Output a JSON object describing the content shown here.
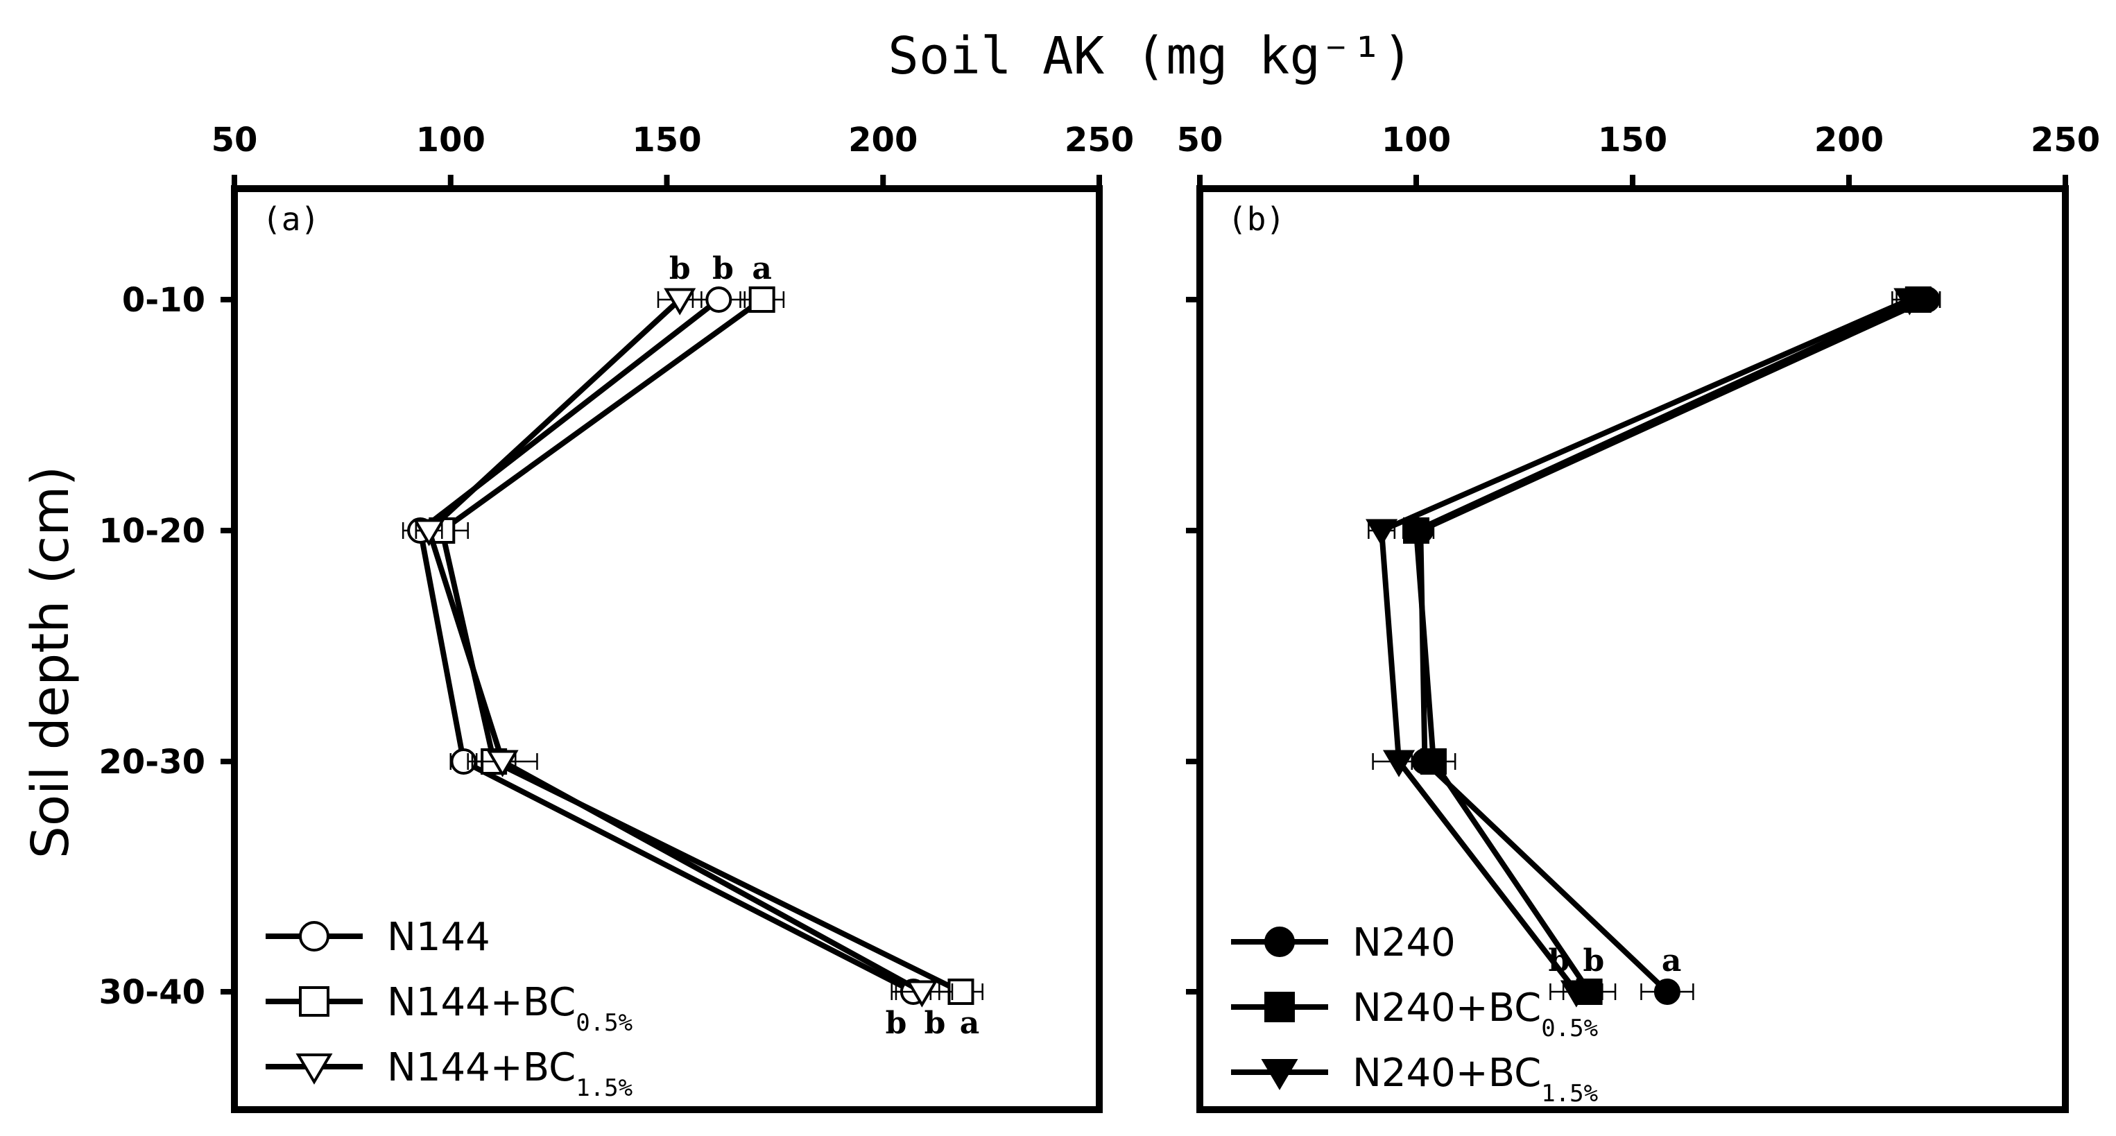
{
  "chart_data": {
    "title": "Soil AK (mg kg⁻¹)",
    "ylabel": "Soil depth (cm)",
    "depth_labels": [
      "0-10",
      "10-20",
      "20-30",
      "30-40"
    ],
    "xlim": [
      50,
      250
    ],
    "xticks": [
      50,
      100,
      150,
      200,
      250
    ],
    "panels": [
      {
        "label": "(a)",
        "type": "line",
        "series": [
          {
            "name": "N144",
            "marker": "circle",
            "fill": "open",
            "values": [
              162,
              93,
              103,
              207
            ],
            "errors": [
              6,
              4,
              3,
              4
            ]
          },
          {
            "name": "N144+BC",
            "subscript": "0.5%",
            "marker": "square",
            "fill": "open",
            "values": [
              172,
              98,
              110,
              218
            ],
            "errors": [
              5,
              6,
              5,
              5
            ]
          },
          {
            "name": "N144+BC",
            "subscript": "1.5%",
            "marker": "triangle",
            "fill": "open",
            "values": [
              153,
              95,
              112,
              209
            ],
            "errors": [
              5,
              3,
              8,
              7
            ]
          }
        ],
        "annotations": [
          {
            "text": "b",
            "x": 153,
            "depth": 0,
            "pos": "above"
          },
          {
            "text": "b",
            "x": 163,
            "depth": 0,
            "pos": "above"
          },
          {
            "text": "a",
            "x": 172,
            "depth": 0,
            "pos": "above"
          },
          {
            "text": "b",
            "x": 203,
            "depth": 3,
            "pos": "below"
          },
          {
            "text": "b",
            "x": 212,
            "depth": 3,
            "pos": "below"
          },
          {
            "text": "a",
            "x": 220,
            "depth": 3,
            "pos": "below"
          }
        ]
      },
      {
        "label": "(b)",
        "type": "line",
        "series": [
          {
            "name": "N240",
            "marker": "circle",
            "fill": "filled",
            "values": [
              218,
              101,
              102,
              158
            ],
            "errors": [
              3,
              3,
              3,
              6
            ]
          },
          {
            "name": "N240+BC",
            "subscript": "0.5%",
            "marker": "square",
            "fill": "filled",
            "values": [
              216,
              100,
              104,
              140
            ],
            "errors": [
              5,
              3,
              5,
              6
            ]
          },
          {
            "name": "N240+BC",
            "subscript": "1.5%",
            "marker": "triangle",
            "fill": "filled",
            "values": [
              214,
              92,
              96,
              137
            ],
            "errors": [
              4,
              3,
              6,
              6
            ]
          }
        ],
        "annotations": [
          {
            "text": "b",
            "x": 133,
            "depth": 3,
            "pos": "above"
          },
          {
            "text": "b",
            "x": 141,
            "depth": 3,
            "pos": "above"
          },
          {
            "text": "a",
            "x": 159,
            "depth": 3,
            "pos": "above"
          }
        ]
      }
    ],
    "legend_position": "bottom-left"
  },
  "colors": {
    "line": "#000000",
    "background": "#ffffff"
  }
}
